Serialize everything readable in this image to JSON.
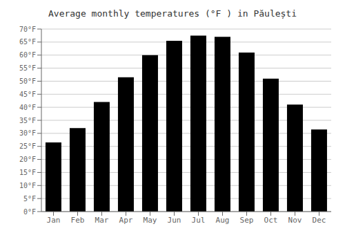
{
  "chart_data": {
    "type": "bar",
    "title": "Average monthly temperatures (°F ) in Păulești",
    "categories": [
      "Jan",
      "Feb",
      "Mar",
      "Apr",
      "May",
      "Jun",
      "Jul",
      "Aug",
      "Sep",
      "Oct",
      "Nov",
      "Dec"
    ],
    "values": [
      26.5,
      32,
      42,
      51.5,
      60,
      65.5,
      67.5,
      67,
      61,
      51,
      41,
      31.5
    ],
    "ylim": [
      0,
      70
    ],
    "yticks": [
      {
        "value": 0,
        "label": "0°F"
      },
      {
        "value": 5,
        "label": "5°F"
      },
      {
        "value": 10,
        "label": "10°F"
      },
      {
        "value": 15,
        "label": "15°F"
      },
      {
        "value": 20,
        "label": "20°F"
      },
      {
        "value": 25,
        "label": "25°F"
      },
      {
        "value": 30,
        "label": "30°F"
      },
      {
        "value": 35,
        "label": "35°F"
      },
      {
        "value": 40,
        "label": "40°F"
      },
      {
        "value": 45,
        "label": "45°F"
      },
      {
        "value": 50,
        "label": "50°F"
      },
      {
        "value": 55,
        "label": "55°F"
      },
      {
        "value": 60,
        "label": "60°F"
      },
      {
        "value": 65,
        "label": "65°F"
      },
      {
        "value": 70,
        "label": "70°F"
      }
    ],
    "grid": true
  }
}
